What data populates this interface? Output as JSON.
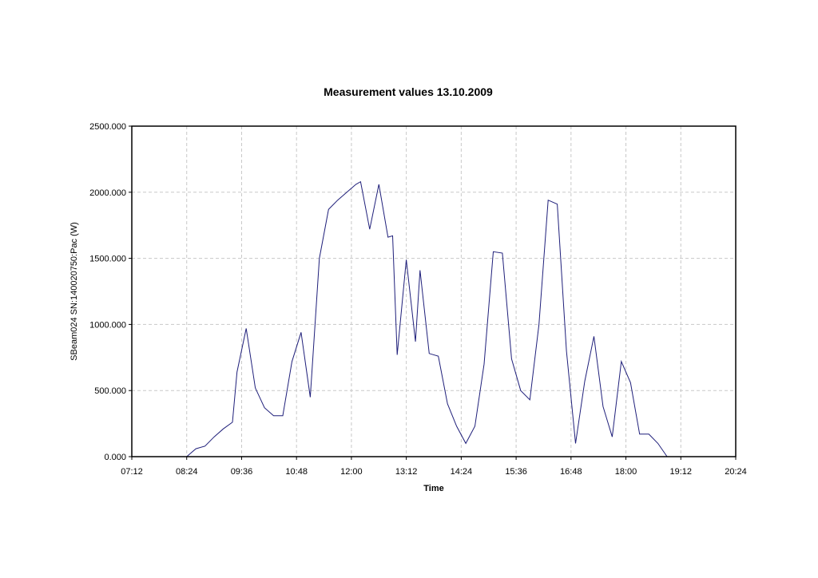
{
  "chart_data": {
    "type": "line",
    "title": "Measurement values 13.10.2009",
    "xlabel": "Time",
    "ylabel": "SBeam024 SN:140020750:Pac (W)",
    "x_ticks": [
      "07:12",
      "08:24",
      "09:36",
      "10:48",
      "12:00",
      "13:12",
      "14:24",
      "15:36",
      "16:48",
      "18:00",
      "19:12",
      "20:24"
    ],
    "y_ticks": [
      "0.000",
      "500.000",
      "1000.000",
      "1500.000",
      "2000.000",
      "2500.000"
    ],
    "xlim": [
      "07:12",
      "20:24"
    ],
    "ylim": [
      0,
      2500
    ],
    "grid": true,
    "colors": {
      "line": "#1f1f7a",
      "grid": "#c8c8c8",
      "frame": "#000000"
    },
    "series": [
      {
        "x": [
          "08:24",
          "08:36",
          "08:48",
          "09:00",
          "09:12",
          "09:24",
          "09:30",
          "09:42",
          "09:54",
          "10:06",
          "10:18",
          "10:30",
          "10:42",
          "10:54",
          "11:06",
          "11:18",
          "11:30",
          "11:42",
          "11:54",
          "12:06",
          "12:12",
          "12:24",
          "12:36",
          "12:48",
          "12:54",
          "13:00",
          "13:12",
          "13:24",
          "13:30",
          "13:42",
          "13:54",
          "14:06",
          "14:18",
          "14:30",
          "14:42",
          "14:54",
          "15:06",
          "15:18",
          "15:30",
          "15:42",
          "15:54",
          "16:06",
          "16:18",
          "16:30",
          "16:42",
          "16:54",
          "17:06",
          "17:18",
          "17:30",
          "17:42",
          "17:54",
          "18:06",
          "18:18",
          "18:30",
          "18:42",
          "18:54"
        ],
        "values": [
          0,
          60,
          80,
          150,
          210,
          260,
          640,
          970,
          520,
          370,
          310,
          310,
          720,
          940,
          450,
          1500,
          1870,
          1940,
          2000,
          2060,
          2080,
          1720,
          2060,
          1660,
          1670,
          770,
          1490,
          870,
          1410,
          780,
          760,
          400,
          230,
          100,
          230,
          700,
          1550,
          1540,
          740,
          500,
          430,
          1000,
          1940,
          1910,
          800,
          100,
          570,
          910,
          380,
          150,
          720,
          560,
          170,
          170,
          100,
          0
        ]
      }
    ]
  }
}
